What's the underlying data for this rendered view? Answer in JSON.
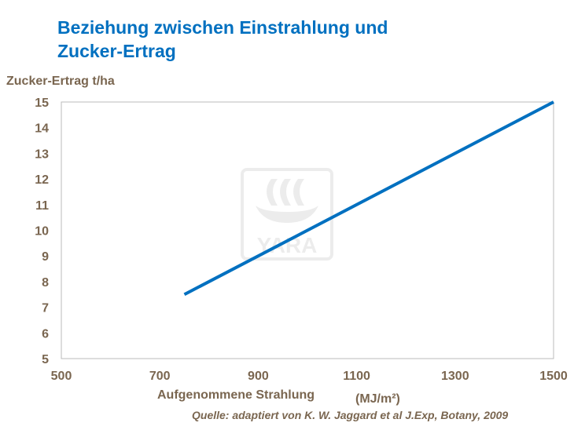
{
  "chart_data": {
    "type": "line",
    "title": "Beziehung zwischen Einstrahlung und Zucker-Ertrag",
    "title_lines": [
      "Beziehung zwischen Einstrahlung und",
      "Zucker-Ertrag"
    ],
    "ylabel": "Zucker-Ertrag t/ha",
    "xlabel": "Aufgenommene Strahlung",
    "xunit": "(MJ/m²)",
    "source": "Quelle: adaptiert von K. W. Jaggard et al J.Exp, Botany, 2009",
    "xlim": [
      500,
      1500
    ],
    "ylim": [
      5,
      15
    ],
    "xticks": [
      500,
      700,
      900,
      1100,
      1300,
      1500
    ],
    "yticks": [
      5,
      6,
      7,
      8,
      9,
      10,
      11,
      12,
      13,
      14,
      15
    ],
    "grid": false,
    "series": [
      {
        "x": [
          750,
          1500
        ],
        "y": [
          7.5,
          15
        ],
        "color": "#0070C0"
      }
    ],
    "watermark": "YARA"
  }
}
